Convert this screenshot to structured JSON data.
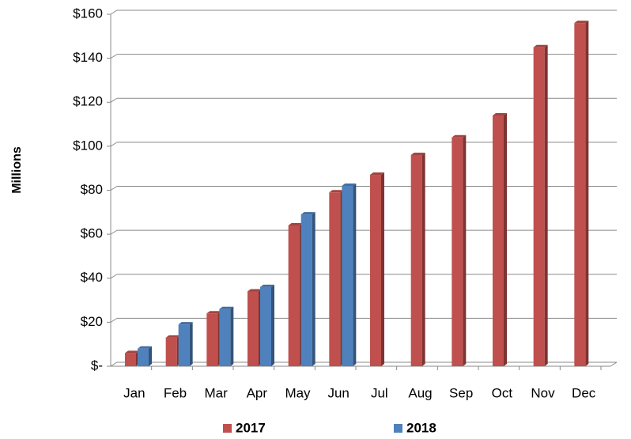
{
  "chart_data": {
    "type": "bar",
    "y_label": "Millions",
    "categories": [
      "Jan",
      "Feb",
      "Mar",
      "Apr",
      "May",
      "Jun",
      "Jul",
      "Aug",
      "Sep",
      "Oct",
      "Nov",
      "Dec"
    ],
    "series": [
      {
        "name": "2017",
        "color": "#c0504d",
        "values": [
          6,
          13,
          24,
          34,
          64,
          79,
          87,
          96,
          104,
          114,
          145,
          156
        ]
      },
      {
        "name": "2018",
        "color": "#4f81bd",
        "values": [
          8,
          19,
          26,
          36,
          69,
          82,
          null,
          null,
          null,
          null,
          null,
          null
        ]
      }
    ],
    "ylim": [
      0,
      160
    ],
    "yticks": [
      {
        "value": 0,
        "label": "$-"
      },
      {
        "value": 20,
        "label": "$20"
      },
      {
        "value": 40,
        "label": "$40"
      },
      {
        "value": 60,
        "label": "$60"
      },
      {
        "value": 80,
        "label": "$80"
      },
      {
        "value": 100,
        "label": "$100"
      },
      {
        "value": 120,
        "label": "$120"
      },
      {
        "value": 140,
        "label": "$140"
      },
      {
        "value": 160,
        "label": "$160"
      }
    ],
    "grid": true,
    "legend": "bottom"
  }
}
